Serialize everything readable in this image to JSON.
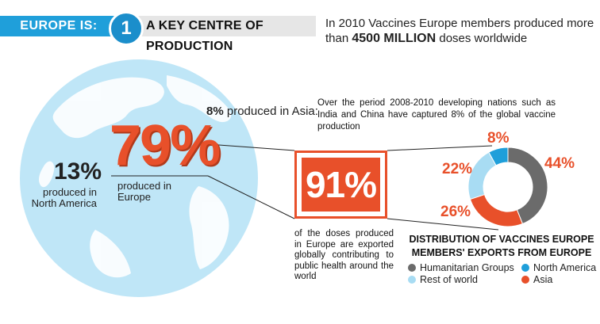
{
  "header": {
    "label": "EUROPE IS:",
    "number": "1",
    "title": "A KEY CENTRE OF PRODUCTION",
    "intro_prefix": "In 2010 Vaccines Europe members produced more than",
    "intro_highlight": "4500 MILLION",
    "intro_suffix": "doses worldwide"
  },
  "asia": {
    "value": "8%",
    "label": "produced in Asia:",
    "description": "Over the period 2008-2010 developing nations such as India and China have captured 8% of the global vaccine production"
  },
  "europe": {
    "value": "79%",
    "label": "produced in Europe"
  },
  "north_america": {
    "value": "13%",
    "label": "produced in North America"
  },
  "exports": {
    "value": "91%",
    "description": "of the doses produced in Europe are exported globally contributing to public health around the world"
  },
  "chart_data": {
    "type": "pie",
    "title": "DISTRIBUTION OF VACCINES EUROPE MEMBERS' EXPORTS FROM EUROPE",
    "slices": [
      {
        "name": "Humanitarian Groups",
        "value": 44,
        "label": "44%",
        "color": "#6b6b6b"
      },
      {
        "name": "Asia",
        "value": 26,
        "label": "26%",
        "color": "#e8502a"
      },
      {
        "name": "Rest of world",
        "value": 22,
        "label": "22%",
        "color": "#a8dcf3"
      },
      {
        "name": "North America",
        "value": 8,
        "label": "8%",
        "color": "#1f9fda"
      }
    ],
    "legend_order": [
      "Humanitarian Groups",
      "North America",
      "Rest of world",
      "Asia"
    ]
  },
  "colors": {
    "accent_blue": "#1f9fda",
    "accent_orange": "#e8502a",
    "globe": "#bfe6f7",
    "land": "#ffffff"
  }
}
